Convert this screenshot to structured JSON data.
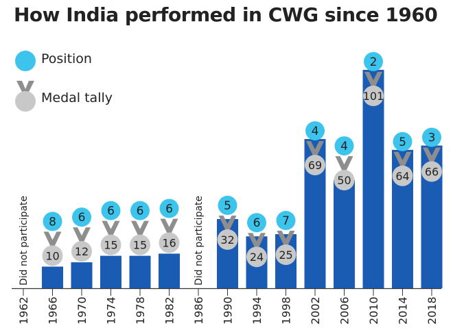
{
  "title": "How India performed in CWG since 1960",
  "legend": {
    "position_label": "Position",
    "medal_label": "Medal tally"
  },
  "colors": {
    "bar": "#1a5cb4",
    "position_circle": "#3dc4ec",
    "medal": "#c8c8c8",
    "medal_ribbon": "#8e8e8e",
    "text": "#222222"
  },
  "icons": {
    "position": "circle-icon",
    "medal": "medal-icon"
  },
  "chart_data": {
    "type": "bar",
    "title": "How India performed in CWG since 1960",
    "categories": [
      "1962",
      "1966",
      "1970",
      "1974",
      "1978",
      "1982",
      "1986",
      "1990",
      "1994",
      "1998",
      "2002",
      "2006",
      "2010",
      "2014",
      "2018"
    ],
    "series": [
      {
        "name": "Medal tally",
        "values": [
          null,
          10,
          12,
          15,
          15,
          16,
          null,
          32,
          24,
          25,
          69,
          50,
          101,
          64,
          66
        ]
      },
      {
        "name": "Position",
        "values": [
          null,
          8,
          6,
          6,
          6,
          6,
          null,
          5,
          6,
          7,
          4,
          4,
          2,
          5,
          3
        ]
      }
    ],
    "annotations": [
      {
        "category": "1962",
        "text": "Did not participate"
      },
      {
        "category": "1986",
        "text": "Did not participate"
      }
    ],
    "ylim": [
      0,
      101
    ]
  }
}
